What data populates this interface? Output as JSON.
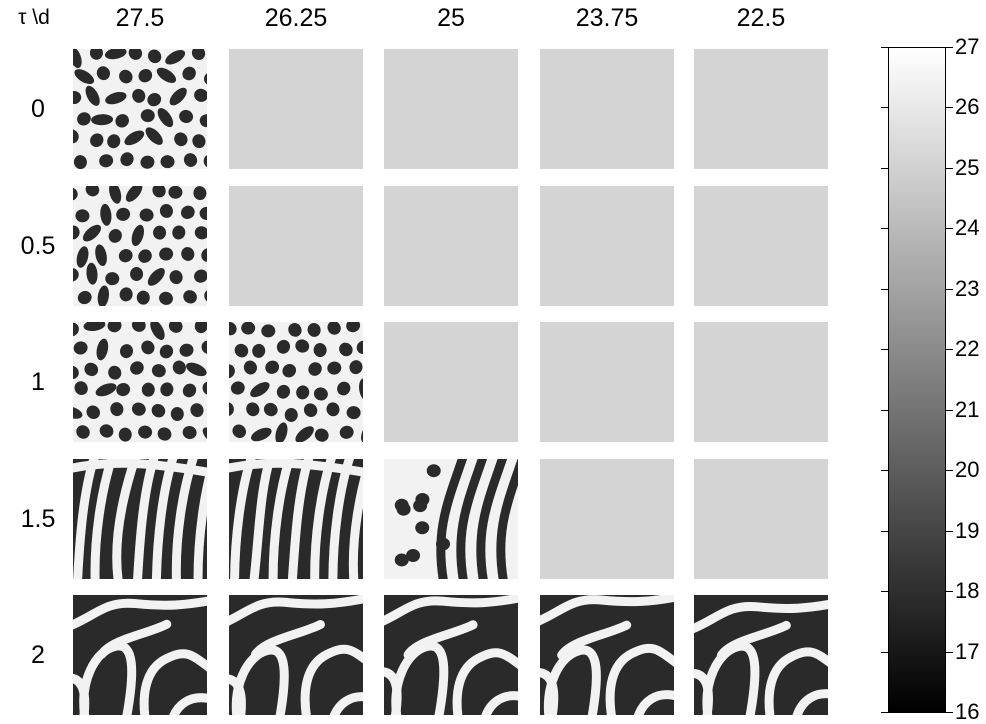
{
  "corner_label": "τ \\d",
  "column_headers": [
    "27.5",
    "26.25",
    "25",
    "23.75",
    "22.5"
  ],
  "row_headers": [
    "0",
    "0.5",
    "1",
    "1.5",
    "2"
  ],
  "grid_state": [
    [
      "spots",
      "uniform",
      "uniform",
      "uniform",
      "uniform"
    ],
    [
      "spots",
      "uniform",
      "uniform",
      "uniform",
      "uniform"
    ],
    [
      "spots",
      "spots",
      "uniform",
      "uniform",
      "uniform"
    ],
    [
      "stripes",
      "stripes",
      "mixed",
      "uniform",
      "uniform"
    ],
    [
      "labyrinth",
      "labyrinth",
      "labyrinth",
      "labyrinth",
      "labyrinth"
    ]
  ],
  "colors": {
    "uniform": "#d4d4d4",
    "bright": "#f2f2f2",
    "dark": "#2a2a2a"
  },
  "colorbar": {
    "min": 16,
    "max": 27,
    "tick_labels": [
      "27",
      "26",
      "25",
      "24",
      "23",
      "22",
      "21",
      "20",
      "19",
      "18",
      "17",
      "16"
    ]
  }
}
